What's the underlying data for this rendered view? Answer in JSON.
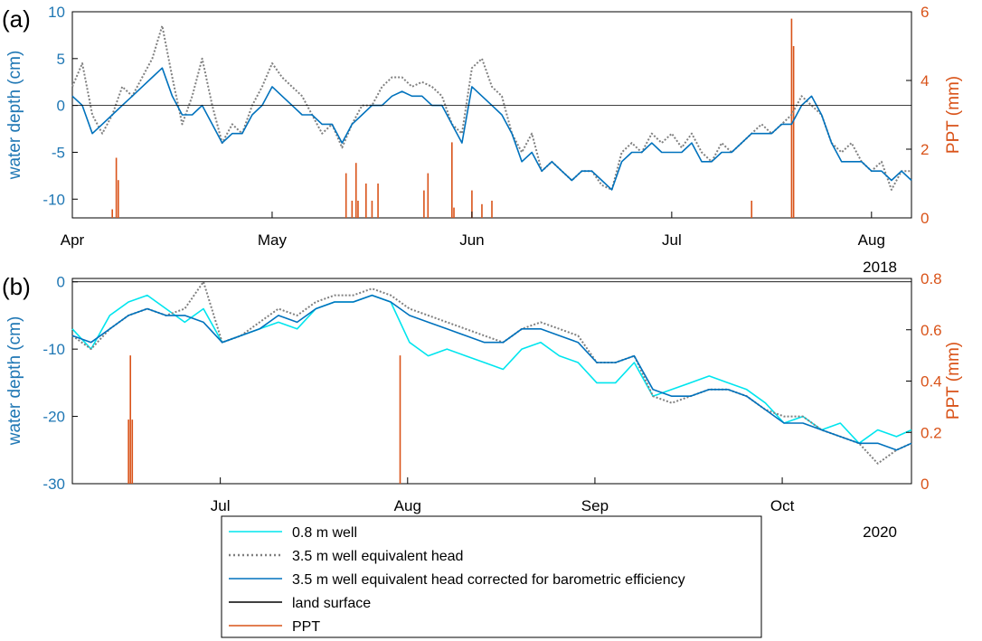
{
  "panel_labels": [
    "(a)",
    "(b)"
  ],
  "colors": {
    "well_08": "#00e5ee",
    "well_35": "#808080",
    "well_35_corr": "#0072bd",
    "land": "#000000",
    "ppt": "#d95319",
    "left_axis": "#0072bd",
    "right_axis": "#d95319"
  },
  "chart_data": [
    {
      "type": "line",
      "panel": "(a)",
      "year_label": "2018",
      "ylabel": "water depth (cm)",
      "ylabel_right": "PPT (mm)",
      "xlim": [
        0,
        4.2
      ],
      "x_ticks": [
        0,
        1,
        2,
        3,
        4
      ],
      "x_tick_labels": [
        "Apr",
        "May",
        "Jun",
        "Jul",
        "Aug"
      ],
      "ylim": [
        -12,
        10
      ],
      "y_ticks": [
        -10,
        -5,
        0,
        5,
        10
      ],
      "y_tick_labels": [
        "-10",
        "-5",
        "0",
        "5",
        "10"
      ],
      "ylim_right": [
        0,
        6
      ],
      "y_ticks_right": [
        0,
        2,
        4,
        6
      ],
      "y_tick_labels_right": [
        "0",
        "2",
        "4",
        "6"
      ],
      "grid": false,
      "series": [
        {
          "name": "3.5 m well equivalent head",
          "style": "dotted",
          "x": [
            0,
            0.05,
            0.1,
            0.15,
            0.2,
            0.25,
            0.3,
            0.35,
            0.4,
            0.45,
            0.5,
            0.55,
            0.6,
            0.65,
            0.7,
            0.75,
            0.8,
            0.85,
            0.9,
            0.95,
            1.0,
            1.05,
            1.1,
            1.15,
            1.2,
            1.25,
            1.3,
            1.35,
            1.4,
            1.45,
            1.5,
            1.55,
            1.6,
            1.65,
            1.7,
            1.75,
            1.8,
            1.85,
            1.9,
            1.95,
            2.0,
            2.05,
            2.1,
            2.15,
            2.2,
            2.25,
            2.3,
            2.35,
            2.4,
            2.45,
            2.5,
            2.55,
            2.6,
            2.65,
            2.7,
            2.75,
            2.8,
            2.85,
            2.9,
            2.95,
            3.0,
            3.05,
            3.1,
            3.15,
            3.2,
            3.25,
            3.3,
            3.35,
            3.4,
            3.45,
            3.5,
            3.55,
            3.6,
            3.65,
            3.7,
            3.75,
            3.8,
            3.85,
            3.9,
            3.95,
            4.0,
            4.05,
            4.1,
            4.15,
            4.2
          ],
          "y": [
            2,
            4.5,
            -1,
            -3,
            -1,
            2,
            1,
            3,
            5,
            8.5,
            3,
            -2,
            1,
            5,
            0,
            -4,
            -2,
            -3,
            0,
            2,
            4.5,
            3,
            2,
            1,
            -1,
            -3,
            -2,
            -4.5,
            -2,
            0,
            0,
            2,
            3,
            3,
            2,
            2.5,
            2,
            1,
            -2,
            -3,
            4,
            5,
            2,
            1,
            -3,
            -5,
            -3,
            -7,
            -6,
            -7,
            -8,
            -7,
            -7,
            -8.5,
            -9,
            -5,
            -4,
            -5,
            -3,
            -4,
            -3,
            -4.5,
            -3,
            -5,
            -6,
            -4,
            -5,
            -4,
            -3,
            -2,
            -3,
            -2,
            -1,
            1,
            0,
            -1,
            -4,
            -5,
            -4,
            -6,
            -7,
            -6,
            -9,
            -7,
            -7
          ]
        },
        {
          "name": "3.5 m well equivalent head corrected for barometric efficiency",
          "style": "solid",
          "x": [
            0,
            0.05,
            0.1,
            0.15,
            0.2,
            0.25,
            0.3,
            0.35,
            0.4,
            0.45,
            0.5,
            0.55,
            0.6,
            0.65,
            0.7,
            0.75,
            0.8,
            0.85,
            0.9,
            0.95,
            1.0,
            1.05,
            1.1,
            1.15,
            1.2,
            1.25,
            1.3,
            1.35,
            1.4,
            1.45,
            1.5,
            1.55,
            1.6,
            1.65,
            1.7,
            1.75,
            1.8,
            1.85,
            1.9,
            1.95,
            2.0,
            2.05,
            2.1,
            2.15,
            2.2,
            2.25,
            2.3,
            2.35,
            2.4,
            2.45,
            2.5,
            2.55,
            2.6,
            2.65,
            2.7,
            2.75,
            2.8,
            2.85,
            2.9,
            2.95,
            3.0,
            3.05,
            3.1,
            3.15,
            3.2,
            3.25,
            3.3,
            3.35,
            3.4,
            3.45,
            3.5,
            3.55,
            3.6,
            3.65,
            3.7,
            3.75,
            3.8,
            3.85,
            3.9,
            3.95,
            4.0,
            4.05,
            4.1,
            4.15,
            4.2
          ],
          "y": [
            1,
            0,
            -3,
            -2,
            -1,
            0,
            1,
            2,
            3,
            4,
            1,
            -1,
            -1,
            0,
            -2,
            -4,
            -3,
            -3,
            -1,
            0,
            2,
            1,
            0,
            -1,
            -1,
            -2,
            -2,
            -4,
            -2,
            -1,
            0,
            0,
            1,
            1.5,
            1,
            1,
            0,
            0,
            -2,
            -4,
            2,
            1,
            0,
            -1,
            -3,
            -6,
            -5,
            -7,
            -6,
            -7,
            -8,
            -7,
            -7,
            -8,
            -9,
            -6,
            -5,
            -5,
            -4,
            -5,
            -5,
            -5,
            -4,
            -6,
            -6,
            -5,
            -5,
            -4,
            -3,
            -3,
            -3,
            -2,
            -2,
            0,
            1,
            -1,
            -4,
            -6,
            -6,
            -6,
            -7,
            -7,
            -8,
            -7,
            -8
          ]
        },
        {
          "name": "land surface",
          "style": "solid",
          "x": [
            0,
            4.2
          ],
          "y": [
            0,
            0
          ]
        }
      ],
      "ppt": {
        "name": "PPT",
        "x": [
          0.2,
          0.22,
          0.23,
          1.37,
          1.4,
          1.42,
          1.43,
          1.47,
          1.5,
          1.53,
          1.76,
          1.78,
          1.9,
          1.91,
          2.0,
          2.05,
          2.1,
          3.4,
          3.6,
          3.61
        ],
        "values": [
          0.25,
          1.75,
          1.1,
          1.3,
          0.5,
          1.6,
          0.5,
          1.0,
          0.5,
          1.0,
          0.8,
          1.3,
          2.2,
          0.3,
          0.8,
          0.4,
          0.5,
          0.5,
          5.8,
          5.0
        ]
      }
    },
    {
      "type": "line",
      "panel": "(b)",
      "year_label": "2020",
      "ylabel": "water depth (cm)",
      "ylabel_right": "PPT (mm)",
      "xlim": [
        0,
        4.48
      ],
      "x_ticks": [
        0.79,
        1.79,
        2.79,
        3.79
      ],
      "x_tick_labels": [
        "Jul",
        "Aug",
        "Sep",
        "Oct"
      ],
      "ylim": [
        -30,
        0.5
      ],
      "y_ticks": [
        -30,
        -20,
        -10,
        0
      ],
      "y_tick_labels": [
        "-30",
        "-20",
        "-10",
        "0"
      ],
      "ylim_right": [
        0,
        0.8
      ],
      "y_ticks_right": [
        0,
        0.2,
        0.4,
        0.6,
        0.8
      ],
      "y_tick_labels_right": [
        "0",
        "0.2",
        "0.4",
        "0.6",
        "0.8"
      ],
      "grid": false,
      "series": [
        {
          "name": "0.8 m well",
          "style": "solid",
          "x": [
            0,
            0.1,
            0.2,
            0.3,
            0.4,
            0.5,
            0.6,
            0.7,
            0.8,
            0.9,
            1.0,
            1.1,
            1.2,
            1.3,
            1.4,
            1.5,
            1.6,
            1.7,
            1.8,
            1.9,
            2.0,
            2.1,
            2.2,
            2.3,
            2.4,
            2.5,
            2.6,
            2.7,
            2.8,
            2.9,
            3.0,
            3.1,
            3.2,
            3.3,
            3.4,
            3.5,
            3.6,
            3.7,
            3.8,
            3.9,
            4.0,
            4.1,
            4.2,
            4.3,
            4.4,
            4.48
          ],
          "y": [
            -7,
            -10,
            -5,
            -3,
            -2,
            -4,
            -6,
            -4,
            -9,
            -8,
            -7,
            -6,
            -7,
            -4,
            -3,
            -3,
            -2,
            -3,
            -9,
            -11,
            -10,
            -11,
            -12,
            -13,
            -10,
            -9,
            -11,
            -12,
            -15,
            -15,
            -12,
            -17,
            -16,
            -15,
            -14,
            -15,
            -16,
            -18,
            -21,
            -20,
            -22,
            -21,
            -24,
            -22,
            -23,
            -22
          ]
        },
        {
          "name": "3.5 m well equivalent head",
          "style": "dotted",
          "x": [
            0,
            0.1,
            0.2,
            0.3,
            0.4,
            0.5,
            0.6,
            0.7,
            0.8,
            0.9,
            1.0,
            1.1,
            1.2,
            1.3,
            1.4,
            1.5,
            1.6,
            1.7,
            1.8,
            1.9,
            2.0,
            2.1,
            2.2,
            2.3,
            2.4,
            2.5,
            2.6,
            2.7,
            2.8,
            2.9,
            3.0,
            3.1,
            3.2,
            3.3,
            3.4,
            3.5,
            3.6,
            3.7,
            3.8,
            3.9,
            4.0,
            4.1,
            4.2,
            4.3,
            4.4,
            4.48
          ],
          "y": [
            -8,
            -10,
            -7,
            -5,
            -4,
            -5,
            -4,
            0,
            -9,
            -8,
            -6,
            -4,
            -5,
            -3,
            -2,
            -2,
            -1,
            -2,
            -4,
            -5,
            -6,
            -7,
            -8,
            -9,
            -7,
            -6,
            -7,
            -8,
            -12,
            -12,
            -11,
            -17,
            -18,
            -17,
            -16,
            -16,
            -17,
            -19,
            -20,
            -20,
            -22,
            -23,
            -24,
            -27,
            -25,
            -24
          ]
        },
        {
          "name": "3.5 m well equivalent head corrected for barometric efficiency",
          "style": "solid",
          "x": [
            0,
            0.1,
            0.2,
            0.3,
            0.4,
            0.5,
            0.6,
            0.7,
            0.8,
            0.9,
            1.0,
            1.1,
            1.2,
            1.3,
            1.4,
            1.5,
            1.6,
            1.7,
            1.8,
            1.9,
            2.0,
            2.1,
            2.2,
            2.3,
            2.4,
            2.5,
            2.6,
            2.7,
            2.8,
            2.9,
            3.0,
            3.1,
            3.2,
            3.3,
            3.4,
            3.5,
            3.6,
            3.7,
            3.8,
            3.9,
            4.0,
            4.1,
            4.2,
            4.3,
            4.4,
            4.48
          ],
          "y": [
            -8,
            -9,
            -7,
            -5,
            -4,
            -5,
            -5,
            -6,
            -9,
            -8,
            -7,
            -5,
            -6,
            -4,
            -3,
            -3,
            -2,
            -3,
            -5,
            -6,
            -7,
            -8,
            -9,
            -9,
            -7,
            -7,
            -8,
            -9,
            -12,
            -12,
            -11,
            -16,
            -17,
            -17,
            -16,
            -16,
            -17,
            -19,
            -21,
            -21,
            -22,
            -23,
            -24,
            -24,
            -25,
            -24
          ]
        },
        {
          "name": "land surface",
          "style": "solid",
          "x": [
            0,
            4.48
          ],
          "y": [
            0,
            0
          ]
        }
      ],
      "ppt": {
        "name": "PPT",
        "x": [
          0.3,
          0.31,
          0.32,
          1.75
        ],
        "values": [
          0.25,
          0.5,
          0.25,
          0.5
        ]
      }
    }
  ],
  "legend": {
    "placement": "bottom-center",
    "entries": [
      {
        "label": "0.8 m well",
        "color": "#00e5ee",
        "style": "solid"
      },
      {
        "label": "3.5 m well equivalent head",
        "color": "#808080",
        "style": "dotted"
      },
      {
        "label": "3.5 m well equivalent head corrected for barometric efficiency",
        "color": "#0072bd",
        "style": "solid"
      },
      {
        "label": "land surface",
        "color": "#000000",
        "style": "solid"
      },
      {
        "label": "PPT",
        "color": "#d95319",
        "style": "solid"
      }
    ]
  }
}
